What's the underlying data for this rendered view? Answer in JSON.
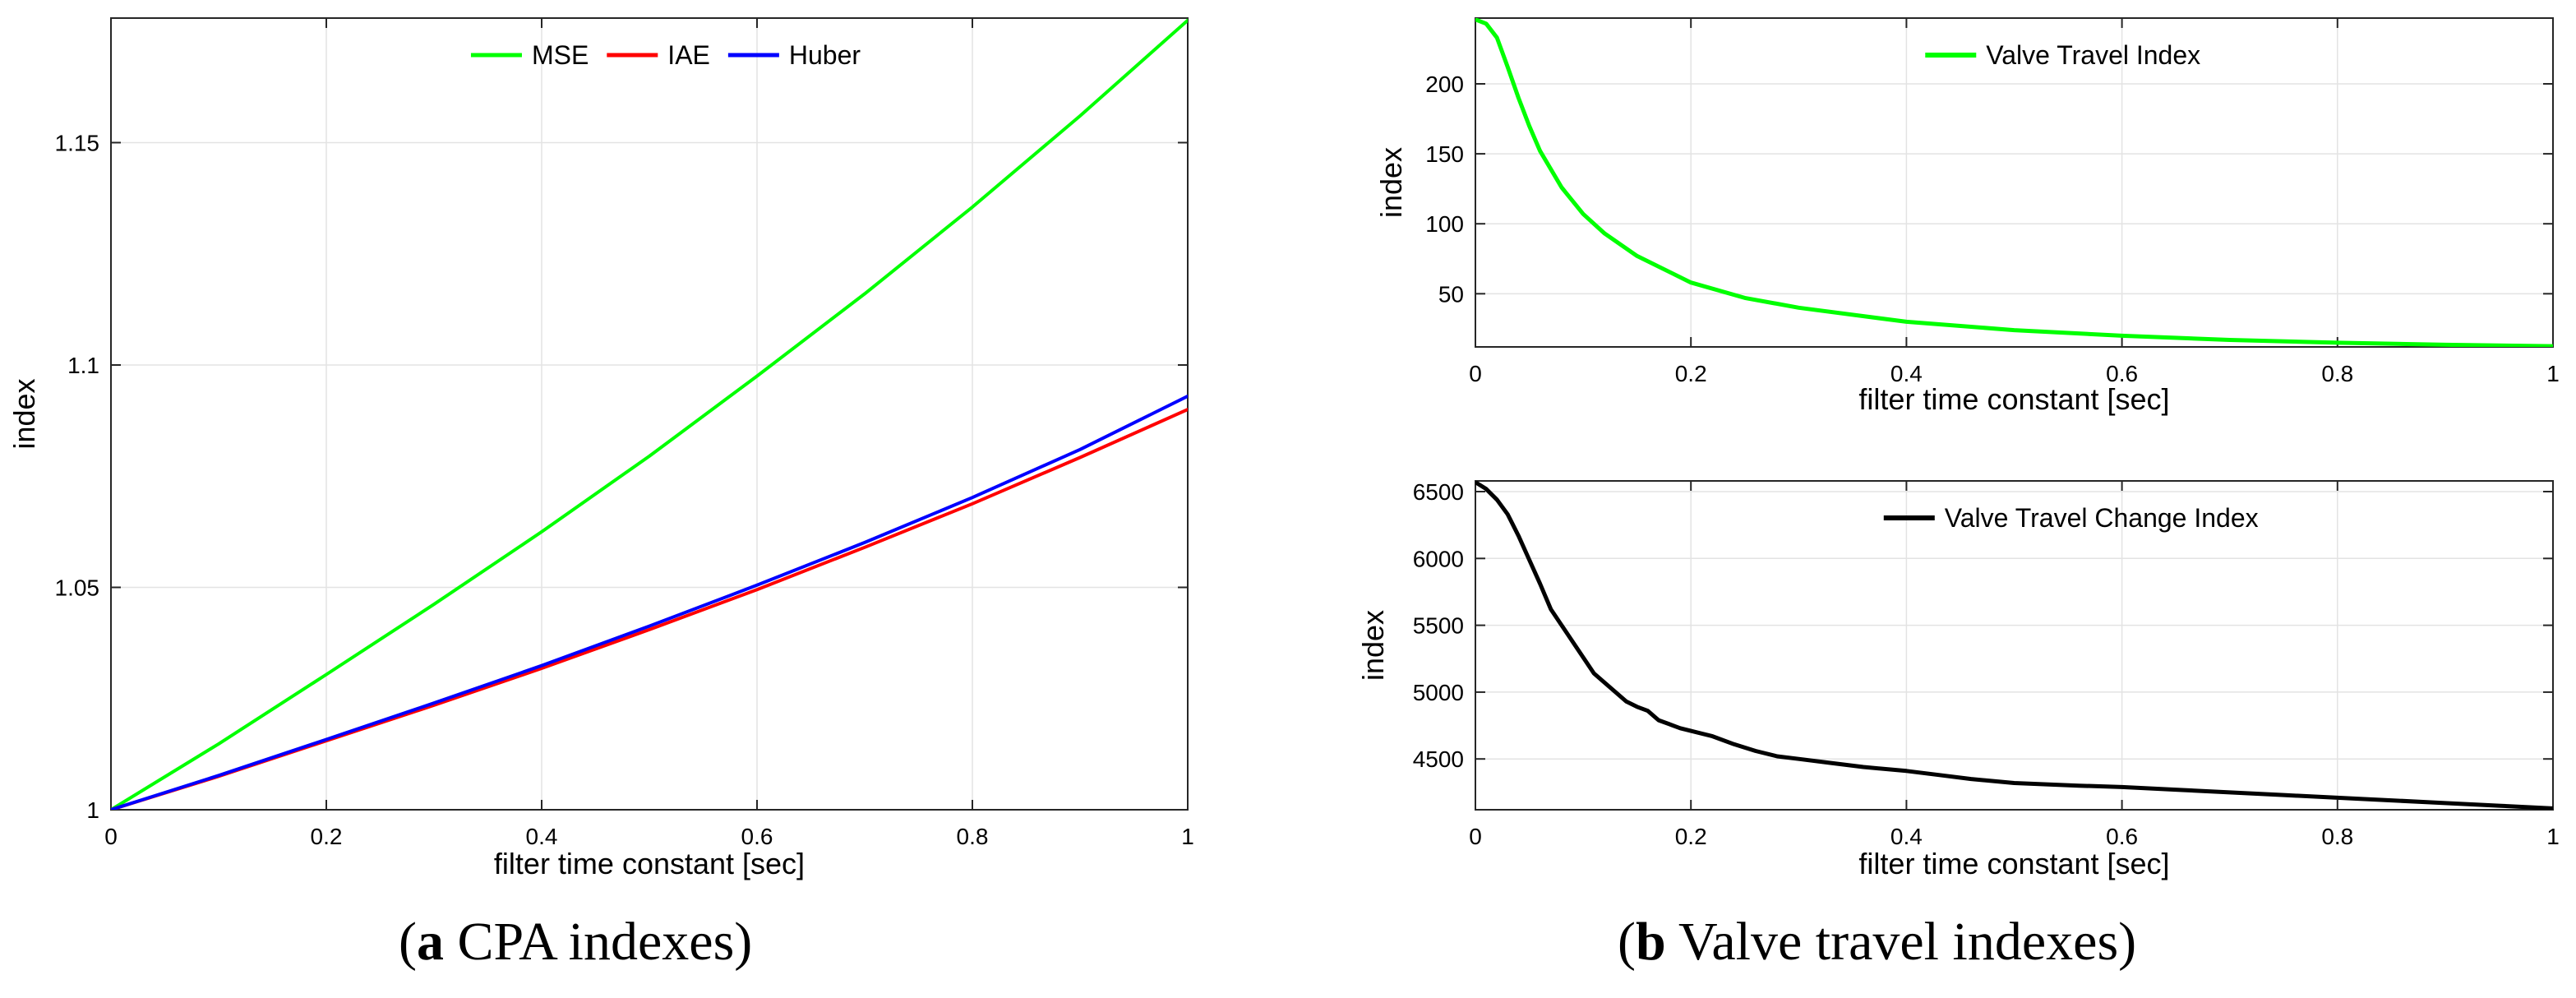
{
  "captions": {
    "a_letter": "a",
    "a_text": " CPA indexes",
    "b_letter": "b",
    "b_text": " Valve travel indexes"
  },
  "colors": {
    "mse": "#00ff00",
    "iae": "#ff0000",
    "huber": "#0000ff",
    "valve_travel": "#00ff00",
    "valve_travel_change": "#000000"
  },
  "chart_data": [
    {
      "id": "cpa",
      "type": "line",
      "title": "",
      "xlabel": "filter time constant [sec]",
      "ylabel": "index",
      "xlim": [
        0,
        1
      ],
      "ylim": [
        1.0,
        1.178
      ],
      "xticks": [
        0,
        0.2,
        0.4,
        0.6,
        0.8,
        1
      ],
      "xtick_labels": [
        "0",
        "0.2",
        "0.4",
        "0.6",
        "0.8",
        "1"
      ],
      "yticks": [
        1.0,
        1.05,
        1.1,
        1.15
      ],
      "ytick_labels": [
        "1",
        "1.05",
        "1.1",
        "1.15"
      ],
      "grid": true,
      "legend": "top-center",
      "series": [
        {
          "name": "MSE",
          "color": "#00ff00",
          "x": [
            0,
            0.1,
            0.2,
            0.3,
            0.4,
            0.5,
            0.6,
            0.7,
            0.8,
            0.9,
            1.0
          ],
          "y": [
            1.0,
            1.0148,
            1.0304,
            1.0462,
            1.0625,
            1.0795,
            1.0975,
            1.116,
            1.1355,
            1.156,
            1.1775
          ]
        },
        {
          "name": "IAE",
          "color": "#ff0000",
          "x": [
            0,
            0.1,
            0.2,
            0.3,
            0.4,
            0.5,
            0.6,
            0.7,
            0.8,
            0.9,
            1.0
          ],
          "y": [
            1.0,
            1.0075,
            1.0155,
            1.0235,
            1.0318,
            1.0405,
            1.0495,
            1.059,
            1.0688,
            1.0792,
            1.09
          ]
        },
        {
          "name": "Huber",
          "color": "#0000ff",
          "x": [
            0,
            0.1,
            0.2,
            0.3,
            0.4,
            0.5,
            0.6,
            0.7,
            0.8,
            0.9,
            1.0
          ],
          "y": [
            1.0,
            1.0077,
            1.0158,
            1.024,
            1.0324,
            1.0413,
            1.0505,
            1.0601,
            1.0702,
            1.081,
            1.093
          ]
        }
      ]
    },
    {
      "id": "vti",
      "type": "line",
      "title": "",
      "xlabel": "filter time constant [sec]",
      "ylabel": "index",
      "xlim": [
        0,
        1
      ],
      "ylim": [
        12,
        247
      ],
      "xticks": [
        0,
        0.2,
        0.4,
        0.6,
        0.8,
        1
      ],
      "xtick_labels": [
        "0",
        "0.2",
        "0.4",
        "0.6",
        "0.8",
        "1"
      ],
      "yticks": [
        50,
        100,
        150,
        200
      ],
      "ytick_labels": [
        "50",
        "100",
        "150",
        "200"
      ],
      "grid": true,
      "legend": "top-center",
      "series": [
        {
          "name": "Valve Travel Index",
          "color": "#00ff00",
          "x": [
            0,
            0.01,
            0.02,
            0.03,
            0.04,
            0.05,
            0.06,
            0.08,
            0.1,
            0.12,
            0.15,
            0.2,
            0.25,
            0.3,
            0.4,
            0.5,
            0.6,
            0.7,
            0.8,
            0.9,
            1.0
          ],
          "y": [
            246,
            243,
            233,
            212,
            190,
            170,
            152,
            126,
            107,
            93,
            77,
            58,
            47,
            40,
            30,
            24,
            20,
            17,
            15,
            13.5,
            12.5
          ]
        }
      ]
    },
    {
      "id": "vtci",
      "type": "line",
      "title": "",
      "xlabel": "filter time constant [sec]",
      "ylabel": "index",
      "xlim": [
        0,
        1
      ],
      "ylim": [
        4120,
        6580
      ],
      "xticks": [
        0,
        0.2,
        0.4,
        0.6,
        0.8,
        1
      ],
      "xtick_labels": [
        "0",
        "0.2",
        "0.4",
        "0.6",
        "0.8",
        "1"
      ],
      "yticks": [
        4500,
        5000,
        5500,
        6000,
        6500
      ],
      "ytick_labels": [
        "4500",
        "5000",
        "5500",
        "6000",
        "6500"
      ],
      "grid": true,
      "legend": "top-center",
      "series": [
        {
          "name": "Valve Travel Change Index",
          "color": "#000000",
          "x": [
            0,
            0.01,
            0.02,
            0.03,
            0.04,
            0.05,
            0.06,
            0.07,
            0.08,
            0.09,
            0.1,
            0.11,
            0.12,
            0.13,
            0.14,
            0.15,
            0.16,
            0.17,
            0.18,
            0.19,
            0.2,
            0.22,
            0.24,
            0.26,
            0.28,
            0.3,
            0.33,
            0.36,
            0.4,
            0.43,
            0.46,
            0.5,
            0.53,
            0.56,
            0.6,
            0.65,
            0.7,
            0.75,
            0.8,
            0.85,
            0.9,
            0.95,
            1.0
          ],
          "y": [
            6570,
            6520,
            6440,
            6330,
            6170,
            5990,
            5810,
            5620,
            5500,
            5380,
            5260,
            5140,
            5070,
            5000,
            4930,
            4890,
            4860,
            4790,
            4760,
            4730,
            4710,
            4670,
            4610,
            4560,
            4520,
            4500,
            4470,
            4440,
            4410,
            4380,
            4350,
            4320,
            4310,
            4300,
            4290,
            4270,
            4250,
            4230,
            4210,
            4190,
            4170,
            4150,
            4130
          ]
        }
      ]
    }
  ]
}
